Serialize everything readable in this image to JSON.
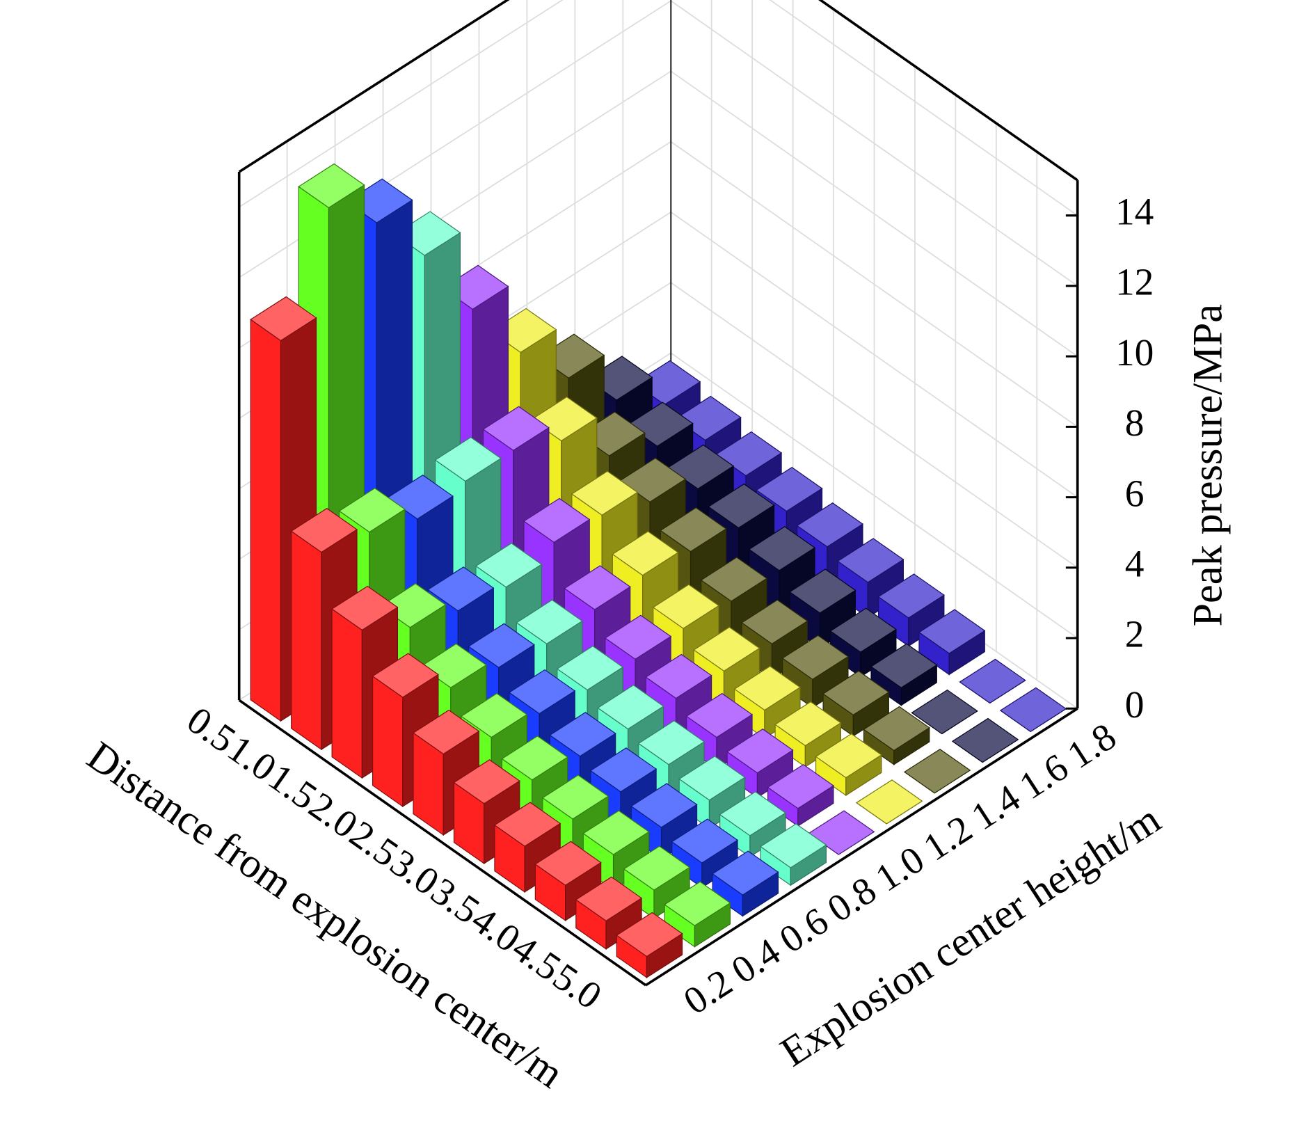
{
  "chart_data": {
    "type": "bar3d",
    "x_label": "Distance from explosion center/m",
    "y_label": "Explosion center height/m",
    "z_label": "Peak pressure/MPa",
    "categories": [
      "0.5",
      "1.0",
      "1.5",
      "2.0",
      "2.5",
      "3.0",
      "3.5",
      "4.0",
      "4.5",
      "5.0"
    ],
    "series": [
      {
        "name": "0.2",
        "color": "#ff2020",
        "values": [
          10.8,
          5.6,
          4.2,
          3.1,
          2.3,
          1.7,
          1.3,
          1.0,
          0.8,
          0.6
        ]
      },
      {
        "name": "0.4",
        "color": "#66ff22",
        "values": [
          13.7,
          5.3,
          3.4,
          2.5,
          1.9,
          1.5,
          1.2,
          1.0,
          0.8,
          0.6
        ]
      },
      {
        "name": "0.6",
        "color": "#1a3cff",
        "values": [
          12.4,
          4.8,
          3.0,
          2.2,
          1.7,
          1.3,
          1.1,
          0.9,
          0.7,
          0.6
        ]
      },
      {
        "name": "0.8",
        "color": "#66ffcc",
        "values": [
          10.6,
          5.0,
          2.8,
          2.0,
          1.5,
          1.2,
          1.0,
          0.8,
          0.6,
          0.5
        ]
      },
      {
        "name": "1.0",
        "color": "#9933ff",
        "values": [
          8.2,
          5.0,
          3.2,
          2.1,
          1.5,
          1.2,
          0.9,
          0.7,
          0.5,
          0
        ]
      },
      {
        "name": "1.2",
        "color": "#eeee22",
        "values": [
          6.1,
          4.4,
          3.1,
          2.2,
          1.5,
          1.1,
          0.8,
          0.6,
          0.5,
          0
        ]
      },
      {
        "name": "1.4",
        "color": "#555511",
        "values": [
          4.5,
          3.1,
          2.6,
          2.0,
          1.4,
          1.0,
          0.8,
          0.6,
          0.4,
          0
        ]
      },
      {
        "name": "1.6",
        "color": "#0a0a40",
        "values": [
          3.0,
          2.5,
          2.1,
          1.8,
          1.4,
          1.0,
          0.7,
          0.5,
          0,
          0
        ]
      },
      {
        "name": "1.8",
        "color": "#3322cc",
        "values": [
          2.0,
          1.8,
          1.6,
          1.4,
          1.2,
          1.0,
          0.8,
          0.6,
          0,
          0
        ]
      }
    ],
    "zlim": [
      0,
      15
    ],
    "zticks": [
      0,
      2,
      4,
      6,
      8,
      10,
      12,
      14
    ],
    "grid": true
  }
}
